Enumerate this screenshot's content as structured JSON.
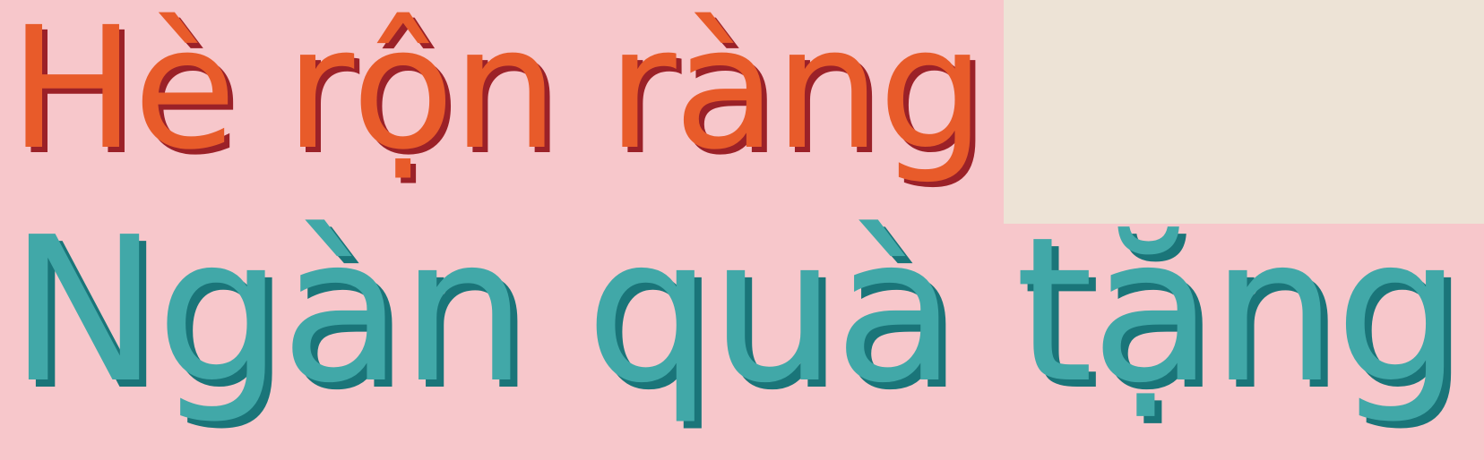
{
  "headline": {
    "line1": "Hè rộn ràng",
    "line2": "Ngàn quà tặng"
  },
  "colors": {
    "background": "#F7C7CB",
    "corner_panel": "#EDE3D6",
    "line1_fill": "#E85B2A",
    "line1_shadow": "#9B2128",
    "line2_fill": "#41A8A8",
    "line2_shadow": "#1A7579"
  }
}
